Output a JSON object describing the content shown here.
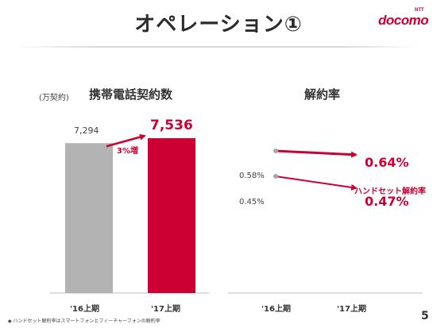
{
  "header": {
    "title": "オペレーション①",
    "logo_text": "docomo",
    "logo_small": "NTT"
  },
  "colors": {
    "accent": "#cc0033",
    "gray_bar": "#b3b3b3",
    "text": "#333333"
  },
  "footer": {
    "note": "◆ ハンドセット解約率はスマートフォンとフィーチャーフォンの解約率",
    "page_number": "5"
  },
  "chart_data": [
    {
      "type": "bar",
      "title": "携帯電話契約数",
      "unit_label": "(万契約)",
      "categories": [
        "'16上期",
        "'17上期"
      ],
      "values": [
        7294,
        7536
      ],
      "value_labels": [
        "7,294",
        "7,536"
      ],
      "annotation": "3%増",
      "bar_colors": [
        "#b3b3b3",
        "#cc0033"
      ]
    },
    {
      "type": "line",
      "title": "解約率",
      "categories": [
        "'16上期",
        "'17上期"
      ],
      "series": [
        {
          "values": [
            0.58,
            0.64
          ],
          "value_labels": [
            "0.58%",
            "0.64%"
          ]
        },
        {
          "name": "ハンドセット解約率",
          "values": [
            0.45,
            0.47
          ],
          "value_labels": [
            "0.45%",
            "0.47%"
          ]
        }
      ]
    }
  ]
}
